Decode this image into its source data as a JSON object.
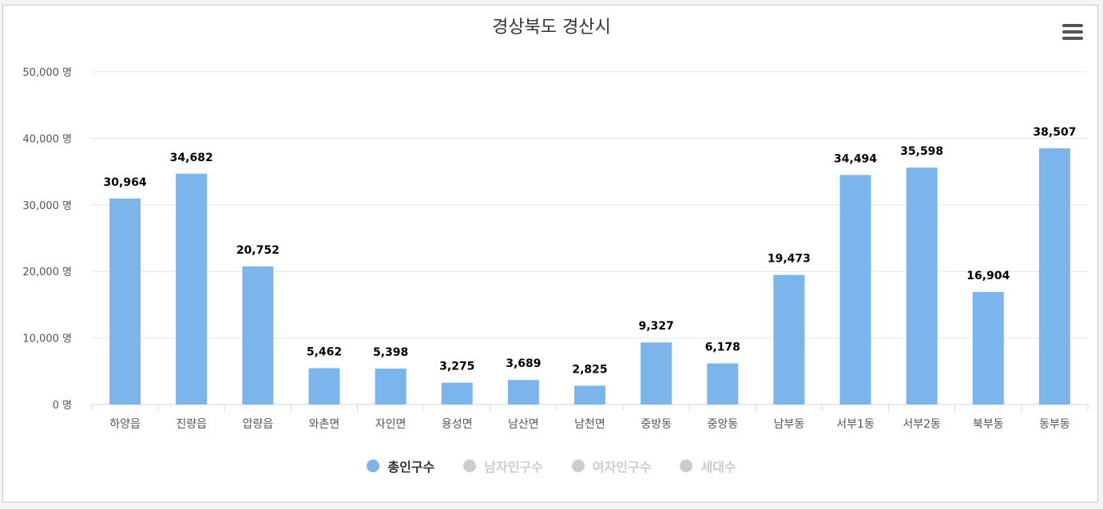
{
  "chart_data": {
    "type": "bar",
    "title": "경상북도 경산시",
    "categories": [
      "하양읍",
      "진량읍",
      "압량읍",
      "와촌면",
      "자인면",
      "용성면",
      "남산면",
      "남천면",
      "중방동",
      "중앙동",
      "남부동",
      "서부1동",
      "서부2동",
      "북부동",
      "동부동"
    ],
    "series": [
      {
        "name": "총인구수",
        "values": [
          30964,
          34682,
          20752,
          5462,
          5398,
          3275,
          3689,
          2825,
          9327,
          6178,
          19473,
          34494,
          35598,
          16904,
          38507
        ],
        "data_labels": [
          "30,964",
          "34,682",
          "20,752",
          "5,462",
          "5,398",
          "3,275",
          "3,689",
          "2,825",
          "9,327",
          "6,178",
          "19,473",
          "34,494",
          "35,598",
          "16,904",
          "38,507"
        ],
        "color": "#7cb5ec"
      }
    ],
    "ylim": [
      0,
      50000
    ],
    "yticks": [
      0,
      10000,
      20000,
      30000,
      40000,
      50000
    ],
    "ytick_labels": [
      "0 명",
      "10,000 명",
      "20,000 명",
      "30,000 명",
      "40,000 명",
      "50,000 명"
    ],
    "grid": true,
    "legend_position": "bottom-center",
    "xlabel": "",
    "ylabel": ""
  },
  "legend": [
    {
      "label": "총인구수",
      "color": "#7cb5ec",
      "active": true
    },
    {
      "label": "남자인구수",
      "color": "#cccccc",
      "active": false
    },
    {
      "label": "여자인구수",
      "color": "#cccccc",
      "active": false
    },
    {
      "label": "세대수",
      "color": "#cccccc",
      "active": false
    }
  ],
  "menu_icon": "hamburger-icon"
}
